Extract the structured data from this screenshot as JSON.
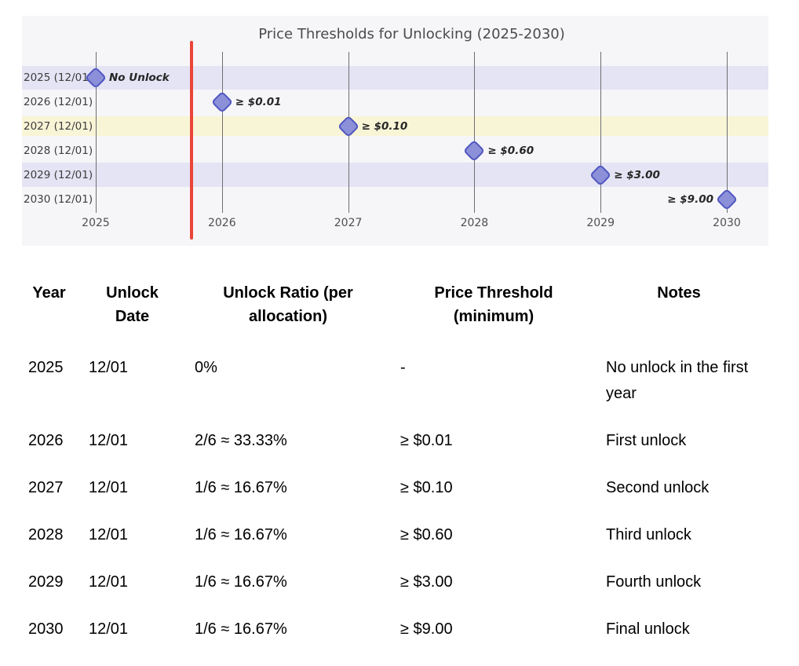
{
  "chart": {
    "title": "Price Thresholds for Unlocking (2025-2030)",
    "colors": {
      "panel_bg": "#f6f6f9",
      "band_lavender": "#e4e4f4",
      "band_yellow": "#f8f5d7",
      "marker_fill": "#8b90d9",
      "marker_border": "#5056c0",
      "gridline": "#6e6e72",
      "reference_line": "#ea4538",
      "title_color": "#4b4b4b"
    },
    "y_axis_labels": [
      "2025 (12/01)",
      "2026 (12/01)",
      "2027 (12/01)",
      "2028 (12/01)",
      "2029 (12/01)",
      "2030 (12/01)"
    ],
    "x_axis_labels": [
      "2025",
      "2026",
      "2027",
      "2028",
      "2029",
      "2030"
    ],
    "markers": [
      {
        "row": 0,
        "col": 0,
        "label": "No Unlock",
        "band": "lavender",
        "side": "right"
      },
      {
        "row": 1,
        "col": 1,
        "label": "≥ $0.01",
        "band": null,
        "side": "right"
      },
      {
        "row": 2,
        "col": 2,
        "label": "≥ $0.10",
        "band": "yellow",
        "side": "right"
      },
      {
        "row": 3,
        "col": 3,
        "label": "≥ $0.60",
        "band": null,
        "side": "right"
      },
      {
        "row": 4,
        "col": 4,
        "label": "≥ $3.00",
        "band": "lavender",
        "side": "right"
      },
      {
        "row": 5,
        "col": 5,
        "label": "≥ $9.00",
        "band": null,
        "side": "left"
      }
    ]
  },
  "chart_data": [
    {
      "type": "scatter",
      "title": "Price Thresholds for Unlocking (2025-2030)",
      "marker": "diamond",
      "x_ticks": [
        2025,
        2026,
        2027,
        2028,
        2029,
        2030
      ],
      "xlim": [
        2024.4,
        2030.35
      ],
      "y_categories": [
        "2025 (12/01)",
        "2026 (12/01)",
        "2027 (12/01)",
        "2028 (12/01)",
        "2029 (12/01)",
        "2030 (12/01)"
      ],
      "points": [
        {
          "x": 2025,
          "y": "2025 (12/01)",
          "annotation": "No Unlock"
        },
        {
          "x": 2026,
          "y": "2026 (12/01)",
          "annotation": "≥ $0.01"
        },
        {
          "x": 2027,
          "y": "2027 (12/01)",
          "annotation": "≥ $0.10"
        },
        {
          "x": 2028,
          "y": "2028 (12/01)",
          "annotation": "≥ $0.60"
        },
        {
          "x": 2029,
          "y": "2029 (12/01)",
          "annotation": "≥ $3.00"
        },
        {
          "x": 2030,
          "y": "2030 (12/01)",
          "annotation": "≥ $9.00"
        }
      ],
      "highlighted_rows": {
        "2025 (12/01)": "lavender",
        "2027 (12/01)": "yellow",
        "2029 (12/01)": "lavender"
      },
      "reference_line": {
        "orientation": "vertical",
        "x": 2025.76,
        "color": "#ea4538"
      },
      "grid": "vertical gridlines at each year",
      "legend": false
    },
    {
      "type": "table",
      "columns": [
        "Year",
        "Unlock Date",
        "Unlock Ratio (per allocation)",
        "Price Threshold (minimum)",
        "Notes"
      ],
      "rows": [
        [
          "2025",
          "12/01",
          "0%",
          "-",
          "No unlock in the first year"
        ],
        [
          "2026",
          "12/01",
          "2/6 ≈ 33.33%",
          "≥ $0.01",
          "First unlock"
        ],
        [
          "2027",
          "12/01",
          "1/6 ≈ 16.67%",
          "≥ $0.10",
          "Second unlock"
        ],
        [
          "2028",
          "12/01",
          "1/6 ≈ 16.67%",
          "≥ $0.60",
          "Third unlock"
        ],
        [
          "2029",
          "12/01",
          "1/6 ≈ 16.67%",
          "≥ $3.00",
          "Fourth unlock"
        ],
        [
          "2030",
          "12/01",
          "1/6 ≈ 16.67%",
          "≥ $9.00",
          "Final unlock"
        ]
      ]
    }
  ],
  "table": {
    "headers": [
      "Year",
      "Unlock Date",
      "Unlock Ratio (per allocation)",
      "Price Threshold (minimum)",
      "Notes"
    ],
    "rows": [
      {
        "year": "2025",
        "date": "12/01",
        "ratio": "0%",
        "price": "-",
        "notes": "No unlock in the first year"
      },
      {
        "year": "2026",
        "date": "12/01",
        "ratio": "2/6 ≈ 33.33%",
        "price": "≥ $0.01",
        "notes": "First unlock"
      },
      {
        "year": "2027",
        "date": "12/01",
        "ratio": "1/6 ≈ 16.67%",
        "price": "≥ $0.10",
        "notes": "Second unlock"
      },
      {
        "year": "2028",
        "date": "12/01",
        "ratio": "1/6 ≈ 16.67%",
        "price": "≥ $0.60",
        "notes": "Third unlock"
      },
      {
        "year": "2029",
        "date": "12/01",
        "ratio": "1/6 ≈ 16.67%",
        "price": "≥ $3.00",
        "notes": "Fourth unlock"
      },
      {
        "year": "2030",
        "date": "12/01",
        "ratio": "1/6 ≈ 16.67%",
        "price": "≥ $9.00",
        "notes": "Final unlock"
      }
    ]
  }
}
